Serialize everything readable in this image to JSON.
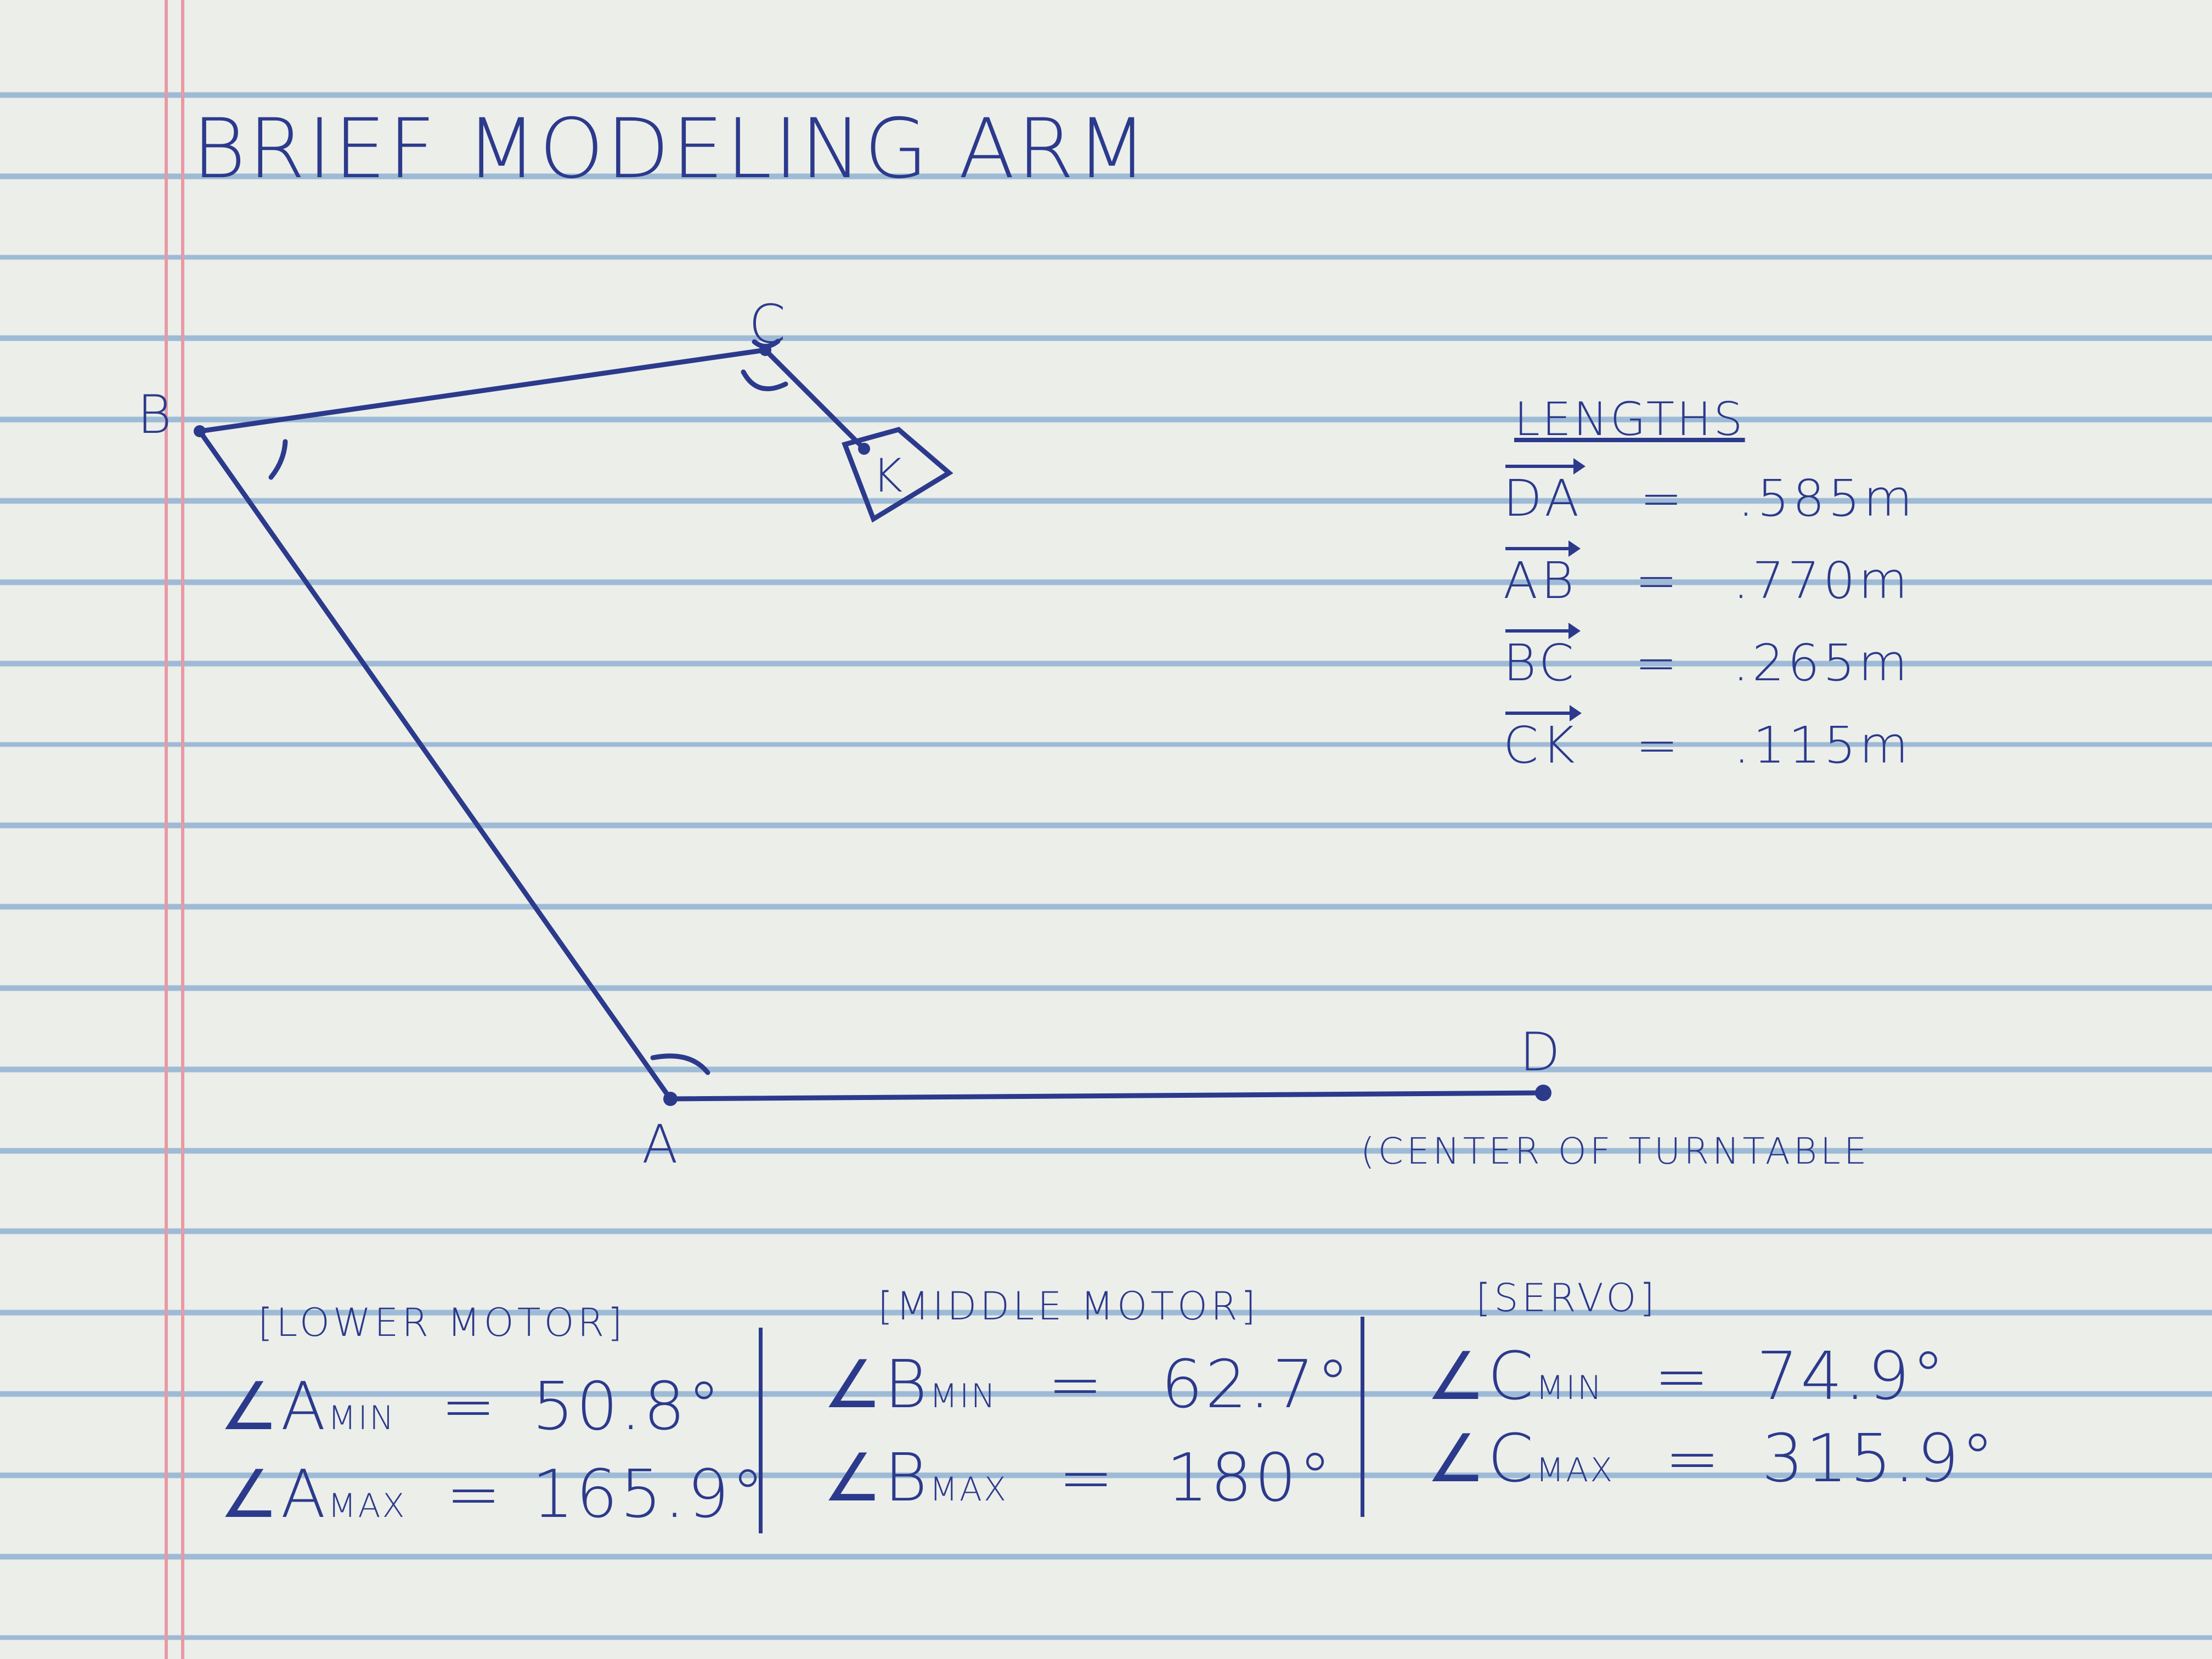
{
  "title": "BRIEF MODELING ARM",
  "points": {
    "A": "A",
    "B": "B",
    "C": "C",
    "D": "D",
    "K": "K"
  },
  "d_note": "(CENTER OF TURNTABLE",
  "lengths": {
    "heading": "LENGTHS",
    "rows": [
      {
        "vector": "DA",
        "equals": "=",
        "value": ".585m"
      },
      {
        "vector": "AB",
        "equals": "=",
        "value": ".770m"
      },
      {
        "vector": "BC",
        "equals": "=",
        "value": ".265m"
      },
      {
        "vector": "CK",
        "equals": "=",
        "value": ".115m"
      }
    ]
  },
  "limits": [
    {
      "group": "[LOWER MOTOR]",
      "min": {
        "angle": "∠A",
        "sub": "MIN",
        "equals": "=",
        "value": "50.8°"
      },
      "max": {
        "angle": "∠A",
        "sub": "MAX",
        "equals": "=",
        "value": "165.9°"
      }
    },
    {
      "group": "[MIDDLE MOTOR]",
      "min": {
        "angle": "∠B",
        "sub": "MIN",
        "equals": "=",
        "value": "62.7°"
      },
      "max": {
        "angle": "∠B",
        "sub": "MAX",
        "equals": "=",
        "value": "180°"
      }
    },
    {
      "group": "[SERVO]",
      "min": {
        "angle": "∠C",
        "sub": "MIN",
        "equals": "=",
        "value": "74.9°"
      },
      "max": {
        "angle": "∠C",
        "sub": "MAX",
        "equals": "=",
        "value": "315.9°"
      }
    }
  ],
  "colors": {
    "ink": "#2c3a8c",
    "rule": "#9dbad6",
    "margin": "#e79aa6",
    "paper": "#eceeea"
  }
}
